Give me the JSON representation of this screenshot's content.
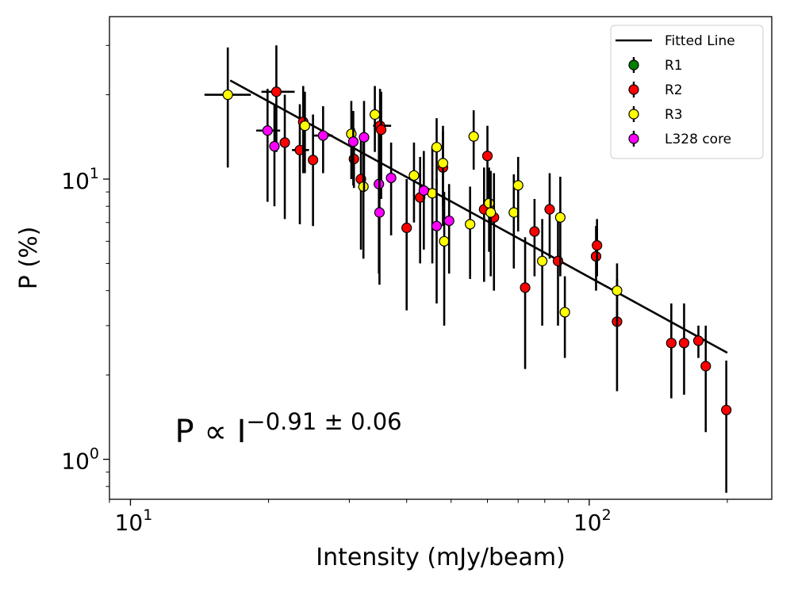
{
  "chart_data": {
    "type": "scatter",
    "xlabel": "Intensity (mJy/beam)",
    "ylabel": "P (%)",
    "xscale": "log",
    "yscale": "log",
    "xlim": [
      9.0,
      250
    ],
    "ylim": [
      0.72,
      38
    ],
    "x_ticks": [
      {
        "value": 10,
        "base": "10",
        "exp": "1"
      },
      {
        "value": 100,
        "base": "10",
        "exp": "2"
      }
    ],
    "y_ticks": [
      {
        "value": 1,
        "base": "10",
        "exp": "0"
      },
      {
        "value": 10,
        "base": "10",
        "exp": "1"
      }
    ],
    "annotation": {
      "main": "P ∝ I",
      "exponent": "−0.91 ± 0.06",
      "x": 12.5,
      "y": 1.15
    },
    "legend": {
      "placement": "top-right",
      "entries": [
        {
          "label": "Fitted Line",
          "kind": "line",
          "color": "#000000"
        },
        {
          "label": "R1",
          "kind": "marker",
          "color": "#008000"
        },
        {
          "label": "R2",
          "kind": "marker",
          "color": "#ff0000"
        },
        {
          "label": "R3",
          "kind": "marker",
          "color": "#ffff00"
        },
        {
          "label": "L328 core",
          "kind": "marker",
          "color": "#ff00ff"
        }
      ]
    },
    "fit": {
      "x": [
        16.5,
        200
      ],
      "y": [
        22.5,
        2.4
      ],
      "color": "#000000"
    },
    "series": [
      {
        "name": "R1",
        "color": "#008000",
        "points": []
      },
      {
        "name": "R2",
        "color": "#ff0000",
        "points": [
          {
            "x": 20.8,
            "y": 20.5,
            "ylo": 12.5,
            "yhi": 30.0,
            "xlo": 19.3,
            "xhi": 22.8
          },
          {
            "x": 21.7,
            "y": 13.5,
            "ylo": 7.2,
            "yhi": 20.0
          },
          {
            "x": 23.4,
            "y": 12.7,
            "ylo": 6.9,
            "yhi": 18.5,
            "xlo": 22.5,
            "xhi": 24.5
          },
          {
            "x": 23.8,
            "y": 16.0,
            "ylo": 10.5,
            "yhi": 21.5
          },
          {
            "x": 25.0,
            "y": 11.7,
            "ylo": 6.8,
            "yhi": 17.0
          },
          {
            "x": 30.7,
            "y": 11.8,
            "ylo": 9.3,
            "yhi": 15.2
          },
          {
            "x": 31.8,
            "y": 10.0,
            "ylo": 5.6,
            "yhi": 14.2
          },
          {
            "x": 35.0,
            "y": 15.5,
            "ylo": 9.8,
            "yhi": 21.0,
            "xlo": 33.8,
            "xhi": 37.0
          },
          {
            "x": 35.2,
            "y": 15.0,
            "ylo": 8.5,
            "yhi": 20.5
          },
          {
            "x": 40.0,
            "y": 6.7,
            "ylo": 3.4,
            "yhi": 10.0
          },
          {
            "x": 42.8,
            "y": 8.6,
            "ylo": 5.0,
            "yhi": 12.0
          },
          {
            "x": 48.0,
            "y": 11.0,
            "ylo": 6.8,
            "yhi": 15.5
          },
          {
            "x": 59.0,
            "y": 7.8,
            "ylo": 4.3,
            "yhi": 11.0
          },
          {
            "x": 60.0,
            "y": 12.1,
            "ylo": 8.5,
            "yhi": 15.5
          },
          {
            "x": 62.0,
            "y": 7.3,
            "ylo": 4.0,
            "yhi": 10.5
          },
          {
            "x": 72.5,
            "y": 4.1,
            "ylo": 2.1,
            "yhi": 6.2
          },
          {
            "x": 76.0,
            "y": 6.5,
            "ylo": 4.5,
            "yhi": 8.5
          },
          {
            "x": 82.0,
            "y": 7.8,
            "ylo": 5.2,
            "yhi": 10.5
          },
          {
            "x": 85.5,
            "y": 5.1,
            "ylo": 3.0,
            "yhi": 7.2
          },
          {
            "x": 103.5,
            "y": 5.3,
            "ylo": 4.0,
            "yhi": 6.8
          },
          {
            "x": 104.0,
            "y": 5.8,
            "ylo": 4.5,
            "yhi": 7.2
          },
          {
            "x": 115.0,
            "y": 3.1,
            "ylo": 1.75,
            "yhi": 4.4
          },
          {
            "x": 151.0,
            "y": 2.6,
            "ylo": 1.65,
            "yhi": 3.6
          },
          {
            "x": 161.0,
            "y": 2.6,
            "ylo": 1.7,
            "yhi": 3.6
          },
          {
            "x": 173.0,
            "y": 2.65,
            "ylo": 2.3,
            "yhi": 3.0
          },
          {
            "x": 179.5,
            "y": 2.15,
            "ylo": 1.25,
            "yhi": 3.0
          },
          {
            "x": 199.0,
            "y": 1.5,
            "ylo": 0.76,
            "yhi": 2.25
          }
        ]
      },
      {
        "name": "R3",
        "color": "#ffff00",
        "points": [
          {
            "x": 16.3,
            "y": 20.0,
            "ylo": 11.0,
            "yhi": 29.5,
            "xlo": 14.5,
            "xhi": 18.3
          },
          {
            "x": 24.0,
            "y": 15.5,
            "ylo": 10.5,
            "yhi": 20.5
          },
          {
            "x": 30.3,
            "y": 14.5,
            "ylo": 10.0,
            "yhi": 19.0
          },
          {
            "x": 32.2,
            "y": 9.4,
            "ylo": 5.2,
            "yhi": 13.5
          },
          {
            "x": 34.1,
            "y": 17.0,
            "ylo": 12.5,
            "yhi": 21.5
          },
          {
            "x": 41.5,
            "y": 10.3,
            "ylo": 7.0,
            "yhi": 13.5
          },
          {
            "x": 45.5,
            "y": 8.9,
            "ylo": 5.0,
            "yhi": 13.0
          },
          {
            "x": 46.5,
            "y": 13.0,
            "ylo": 9.5,
            "yhi": 16.5
          },
          {
            "x": 48.0,
            "y": 11.4,
            "ylo": 8.0,
            "yhi": 14.8
          },
          {
            "x": 48.3,
            "y": 6.0,
            "ylo": 3.0,
            "yhi": 9.0
          },
          {
            "x": 55.0,
            "y": 6.9,
            "ylo": 4.4,
            "yhi": 9.4
          },
          {
            "x": 56.0,
            "y": 14.2,
            "ylo": 10.8,
            "yhi": 17.6
          },
          {
            "x": 60.5,
            "y": 8.2,
            "ylo": 5.5,
            "yhi": 11.0
          },
          {
            "x": 61.0,
            "y": 7.6,
            "ylo": 4.5,
            "yhi": 10.7
          },
          {
            "x": 68.5,
            "y": 7.6,
            "ylo": 4.8,
            "yhi": 10.4
          },
          {
            "x": 70.0,
            "y": 9.5,
            "ylo": 6.5,
            "yhi": 12.0
          },
          {
            "x": 79.0,
            "y": 5.1,
            "ylo": 3.0,
            "yhi": 7.2
          },
          {
            "x": 86.5,
            "y": 7.3,
            "ylo": 4.5,
            "yhi": 10.2
          },
          {
            "x": 88.5,
            "y": 3.35,
            "ylo": 2.3,
            "yhi": 4.5
          },
          {
            "x": 115.0,
            "y": 4.0,
            "ylo": 3.0,
            "yhi": 5.0
          }
        ]
      },
      {
        "name": "L328 core",
        "color": "#ff00ff",
        "points": [
          {
            "x": 19.9,
            "y": 14.9,
            "ylo": 8.3,
            "yhi": 21.0,
            "xlo": 18.8,
            "xhi": 21.2
          },
          {
            "x": 20.6,
            "y": 13.1,
            "ylo": 8.0,
            "yhi": 18.5
          },
          {
            "x": 26.3,
            "y": 14.3,
            "ylo": 10.5,
            "yhi": 18.2,
            "xlo": 25.1,
            "xhi": 27.6
          },
          {
            "x": 30.6,
            "y": 13.6,
            "ylo": 9.5,
            "yhi": 17.5
          },
          {
            "x": 32.3,
            "y": 14.1,
            "ylo": 9.0,
            "yhi": 19.0
          },
          {
            "x": 34.8,
            "y": 9.6,
            "ylo": 4.6,
            "yhi": 14.5
          },
          {
            "x": 34.9,
            "y": 7.6,
            "ylo": 4.2,
            "yhi": 11.0
          },
          {
            "x": 37.0,
            "y": 10.1,
            "ylo": 6.3,
            "yhi": 13.5
          },
          {
            "x": 43.6,
            "y": 9.1,
            "ylo": 5.6,
            "yhi": 12.6
          },
          {
            "x": 46.5,
            "y": 6.8,
            "ylo": 3.6,
            "yhi": 10.0
          },
          {
            "x": 49.5,
            "y": 7.1,
            "ylo": 4.6,
            "yhi": 9.6
          }
        ]
      }
    ]
  }
}
